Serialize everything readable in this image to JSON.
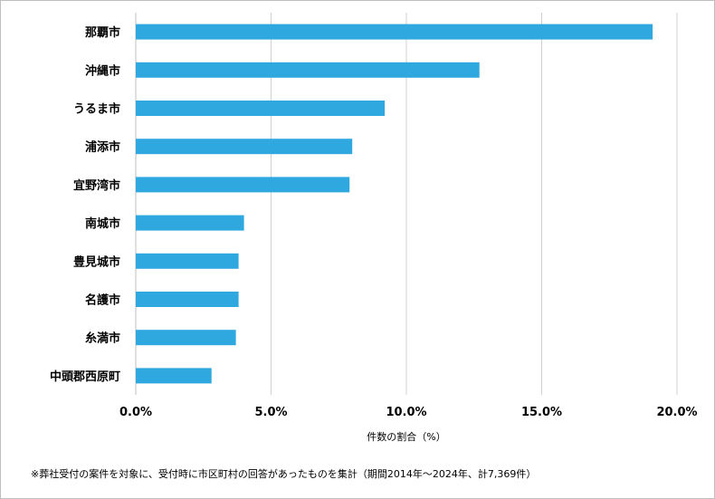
{
  "chart_data": {
    "type": "bar",
    "orientation": "horizontal",
    "categories": [
      "那覇市",
      "沖縄市",
      "うるま市",
      "浦添市",
      "宜野湾市",
      "南城市",
      "豊見城市",
      "名護市",
      "糸満市",
      "中頭郡西原町"
    ],
    "values": [
      19.1,
      12.7,
      9.2,
      8.0,
      7.9,
      4.0,
      3.8,
      3.8,
      3.7,
      2.8
    ],
    "xlim": [
      0,
      20
    ],
    "xticks": [
      "0.0%",
      "5.0%",
      "10.0%",
      "15.0%",
      "20.0%"
    ],
    "xlabel": "件数の割合（%）",
    "bar_color": "#2fa8e0",
    "grid": "vertical"
  },
  "note": "※葬社受付の案件を対象に、受付時に市区町村の回答があったものを集計（期間2014年～2024年、計7,369件）"
}
